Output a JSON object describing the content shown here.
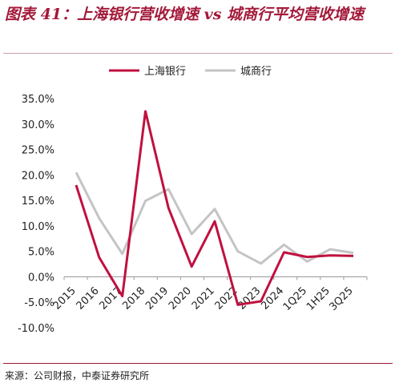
{
  "title": {
    "label": "图表 41：",
    "text": "上海银行营收增速 vs 城商行平均营收增速"
  },
  "source": "来源：公司财报，中泰证券研究所",
  "chart_data": {
    "type": "line",
    "categories": [
      "2015",
      "2016",
      "2017",
      "2018",
      "2019",
      "2020",
      "2021",
      "2022",
      "2023",
      "2024",
      "1Q25",
      "1H25",
      "3Q25"
    ],
    "ylim": [
      -10,
      35
    ],
    "yticks": [
      "35.0%",
      "30.0%",
      "25.0%",
      "20.0%",
      "15.0%",
      "10.0%",
      "5.0%",
      "0.0%",
      "-5.0%",
      "-10.0%"
    ],
    "ytick_values": [
      35,
      30,
      25,
      20,
      15,
      10,
      5,
      0,
      -5,
      -10
    ],
    "legend_position": "top-center",
    "grid": false,
    "series": [
      {
        "name": "上海银行",
        "color": "#c0113f",
        "values": [
          18.0,
          3.8,
          -3.8,
          32.5,
          13.5,
          2.0,
          10.9,
          -5.5,
          -4.8,
          4.8,
          3.9,
          4.2,
          4.1
        ]
      },
      {
        "name": "城商行",
        "color": "#c4c4c4",
        "values": [
          20.5,
          11.5,
          4.5,
          14.9,
          17.2,
          8.4,
          13.3,
          5.0,
          2.6,
          6.3,
          3.0,
          5.4,
          4.7
        ]
      }
    ]
  }
}
